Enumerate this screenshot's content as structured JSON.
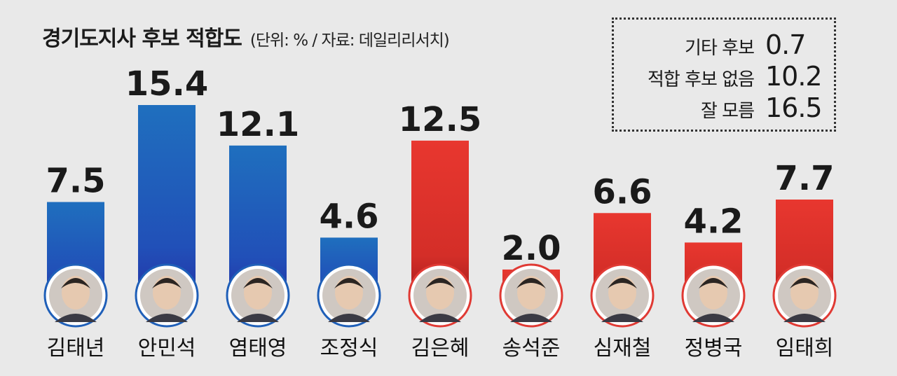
{
  "title": "경기도지사 후보 적합도",
  "subtitle": "(단위: % / 자료: 데일리리서치)",
  "others": [
    {
      "label": "기타 후보",
      "value": "0.7"
    },
    {
      "label": "적합 후보 없음",
      "value": "10.2"
    },
    {
      "label": "잘 모름",
      "value": "16.5"
    }
  ],
  "colors": {
    "blue": "#1f6fbe",
    "blue_dark": "#2436a8",
    "red": "#e8372f",
    "red_dark": "#a81e1e",
    "background": "#e9e9e9"
  },
  "chart_data": {
    "type": "bar",
    "title": "경기도지사 후보 적합도",
    "subtitle": "(단위: % / 자료: 데일리리서치)",
    "categories": [
      "김태년",
      "안민석",
      "염태영",
      "조정식",
      "김은혜",
      "송석준",
      "심재철",
      "정병국",
      "임태희"
    ],
    "values": [
      7.5,
      15.4,
      12.1,
      4.6,
      12.5,
      2.0,
      6.6,
      4.2,
      7.7
    ],
    "value_labels": [
      "7.5",
      "15.4",
      "12.1",
      "4.6",
      "12.5",
      "2.0",
      "6.6",
      "4.2",
      "7.7"
    ],
    "party_colors": [
      "blue",
      "blue",
      "blue",
      "blue",
      "red",
      "red",
      "red",
      "red",
      "red"
    ],
    "ylim": [
      0,
      15.4
    ],
    "grid": false,
    "legend": "top-right"
  }
}
